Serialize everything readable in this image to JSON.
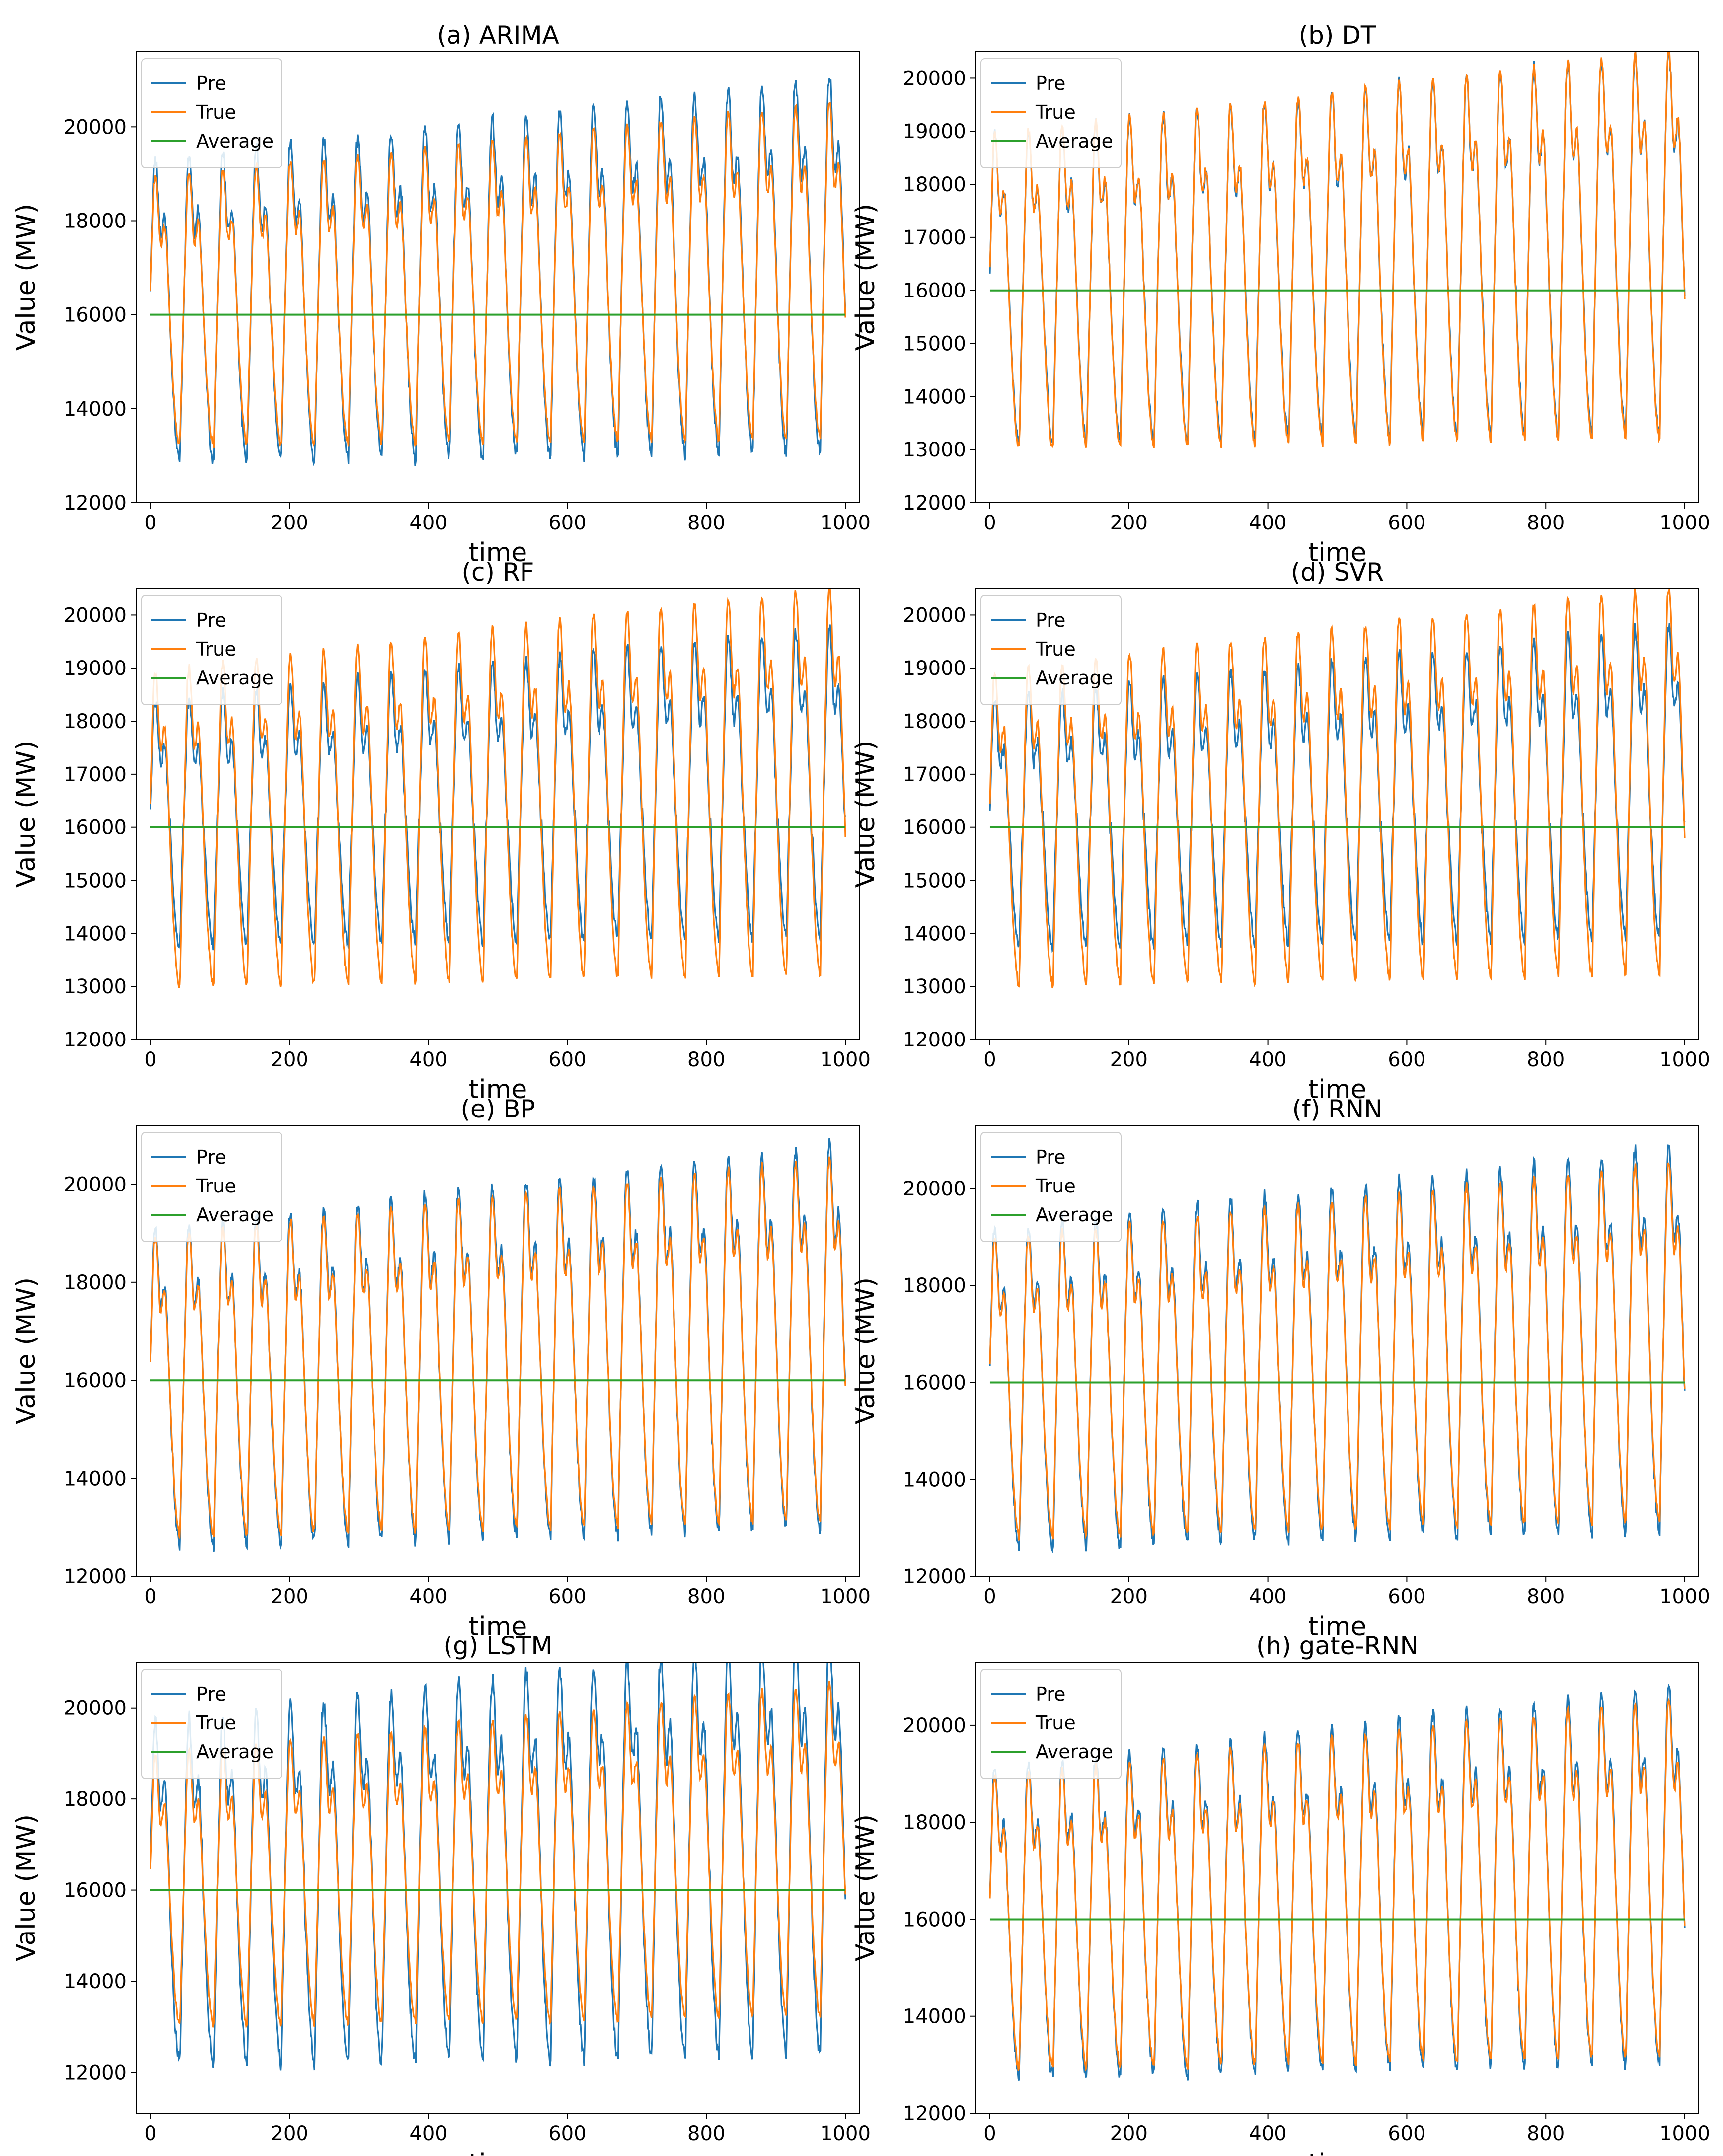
{
  "figure": {
    "legend_labels": [
      "Pre",
      "True",
      "Average"
    ],
    "colors": {
      "pre": "#1f77b4",
      "true": "#ff7f0e",
      "average": "#2ca02c",
      "axes": "#000000"
    }
  },
  "chart_data": [
    {
      "type": "line",
      "title": "(a)  ARIMA",
      "xlabel": "time",
      "ylabel": "Value (MW)",
      "xlim": [
        -20,
        1020
      ],
      "ylim": [
        12000,
        21600
      ],
      "xticks": [
        0,
        200,
        400,
        600,
        800,
        1000
      ],
      "xtick_labels": [
        "0",
        "200",
        "400",
        "600",
        "800",
        "1000"
      ],
      "yticks": [
        12000,
        14000,
        16000,
        18000,
        20000
      ],
      "ytick_labels": [
        "12000",
        "14000",
        "16000",
        "18000",
        "20000"
      ],
      "average": 16000,
      "legend": "top-left",
      "series": [
        {
          "name": "Pre",
          "color": "#1f77b4"
        },
        {
          "name": "True",
          "color": "#ff7f0e"
        },
        {
          "name": "Average",
          "color": "#2ca02c",
          "value": 16000
        }
      ],
      "signal": {
        "peak_start": 18700,
        "peak_end": 20300,
        "trough_start": 13200,
        "trough_end": 13500,
        "pre_amp": 1.12,
        "pre_offset": 0,
        "noise": 250
      }
    },
    {
      "type": "line",
      "title": "(b)  DT",
      "xlabel": "time",
      "ylabel": "Value (MW)",
      "xlim": [
        -20,
        1020
      ],
      "ylim": [
        12000,
        20500
      ],
      "xticks": [
        0,
        200,
        400,
        600,
        800,
        1000
      ],
      "xtick_labels": [
        "0",
        "200",
        "400",
        "600",
        "800",
        "1000"
      ],
      "yticks": [
        12000,
        13000,
        14000,
        15000,
        16000,
        17000,
        18000,
        19000,
        20000
      ],
      "ytick_labels": [
        "12000",
        "13000",
        "14000",
        "15000",
        "16000",
        "17000",
        "18000",
        "19000",
        "20000"
      ],
      "average": 16000,
      "legend": "top-left",
      "series": [
        {
          "name": "Pre",
          "color": "#1f77b4"
        },
        {
          "name": "True",
          "color": "#ff7f0e"
        },
        {
          "name": "Average",
          "color": "#2ca02c",
          "value": 16000
        }
      ],
      "signal": {
        "peak_start": 18700,
        "peak_end": 20300,
        "trough_start": 13000,
        "trough_end": 13400,
        "pre_amp": 1.0,
        "pre_offset": 100,
        "noise": 180
      }
    },
    {
      "type": "line",
      "title": "(c)  RF",
      "xlabel": "time",
      "ylabel": "Value (MW)",
      "xlim": [
        -20,
        1020
      ],
      "ylim": [
        12000,
        20500
      ],
      "xticks": [
        0,
        200,
        400,
        600,
        800,
        1000
      ],
      "xtick_labels": [
        "0",
        "200",
        "400",
        "600",
        "800",
        "1000"
      ],
      "yticks": [
        12000,
        13000,
        14000,
        15000,
        16000,
        17000,
        18000,
        19000,
        20000
      ],
      "ytick_labels": [
        "12000",
        "13000",
        "14000",
        "15000",
        "16000",
        "17000",
        "18000",
        "19000",
        "20000"
      ],
      "average": 16000,
      "legend": "top-left",
      "series": [
        {
          "name": "Pre",
          "color": "#1f77b4"
        },
        {
          "name": "True",
          "color": "#ff7f0e"
        },
        {
          "name": "Average",
          "color": "#2ca02c",
          "value": 16000
        }
      ],
      "signal": {
        "peak_start": 18700,
        "peak_end": 20300,
        "trough_start": 13000,
        "trough_end": 13400,
        "pre_amp": 0.85,
        "pre_offset": 300,
        "noise": 180
      }
    },
    {
      "type": "line",
      "title": "(d)  SVR",
      "xlabel": "time",
      "ylabel": "Value (MW)",
      "xlim": [
        -20,
        1020
      ],
      "ylim": [
        12000,
        20500
      ],
      "xticks": [
        0,
        200,
        400,
        600,
        800,
        1000
      ],
      "xtick_labels": [
        "0",
        "200",
        "400",
        "600",
        "800",
        "1000"
      ],
      "yticks": [
        12000,
        13000,
        14000,
        15000,
        16000,
        17000,
        18000,
        19000,
        20000
      ],
      "ytick_labels": [
        "12000",
        "13000",
        "14000",
        "15000",
        "16000",
        "17000",
        "18000",
        "19000",
        "20000"
      ],
      "average": 16000,
      "legend": "top-left",
      "series": [
        {
          "name": "Pre",
          "color": "#1f77b4"
        },
        {
          "name": "True",
          "color": "#ff7f0e"
        },
        {
          "name": "Average",
          "color": "#2ca02c",
          "value": 16000
        }
      ],
      "signal": {
        "peak_start": 18700,
        "peak_end": 20300,
        "trough_start": 13000,
        "trough_end": 13400,
        "pre_amp": 0.86,
        "pre_offset": 300,
        "noise": 180
      }
    },
    {
      "type": "line",
      "title": "(e)  BP",
      "xlabel": "time",
      "ylabel": "Value (MW)",
      "xlim": [
        -20,
        1020
      ],
      "ylim": [
        12000,
        21200
      ],
      "xticks": [
        0,
        200,
        400,
        600,
        800,
        1000
      ],
      "xtick_labels": [
        "0",
        "200",
        "400",
        "600",
        "800",
        "1000"
      ],
      "yticks": [
        12000,
        14000,
        16000,
        18000,
        20000
      ],
      "ytick_labels": [
        "12000",
        "14000",
        "16000",
        "18000",
        "20000"
      ],
      "average": 16000,
      "legend": "top-left",
      "series": [
        {
          "name": "Pre",
          "color": "#1f77b4"
        },
        {
          "name": "True",
          "color": "#ff7f0e"
        },
        {
          "name": "Average",
          "color": "#2ca02c",
          "value": 16000
        }
      ],
      "signal": {
        "peak_start": 18700,
        "peak_end": 20300,
        "trough_start": 12800,
        "trough_end": 13400,
        "pre_amp": 1.06,
        "pre_offset": 0,
        "noise": 220
      }
    },
    {
      "type": "line",
      "title": "(f)  RNN",
      "xlabel": "time",
      "ylabel": "Value (MW)",
      "xlim": [
        -20,
        1020
      ],
      "ylim": [
        12000,
        21300
      ],
      "xticks": [
        0,
        200,
        400,
        600,
        800,
        1000
      ],
      "xtick_labels": [
        "0",
        "200",
        "400",
        "600",
        "800",
        "1000"
      ],
      "yticks": [
        12000,
        14000,
        16000,
        18000,
        20000
      ],
      "ytick_labels": [
        "12000",
        "14000",
        "16000",
        "18000",
        "20000"
      ],
      "average": 16000,
      "legend": "top-left",
      "series": [
        {
          "name": "Pre",
          "color": "#1f77b4"
        },
        {
          "name": "True",
          "color": "#ff7f0e"
        },
        {
          "name": "Average",
          "color": "#2ca02c",
          "value": 16000
        }
      ],
      "signal": {
        "peak_start": 18700,
        "peak_end": 20300,
        "trough_start": 12800,
        "trough_end": 13400,
        "pre_amp": 1.07,
        "pre_offset": 0,
        "noise": 220
      }
    },
    {
      "type": "line",
      "title": "(g)  LSTM",
      "xlabel": "time",
      "ylabel": "Value (MW)",
      "xlim": [
        -20,
        1020
      ],
      "ylim": [
        11100,
        21000
      ],
      "xticks": [
        0,
        200,
        400,
        600,
        800,
        1000
      ],
      "xtick_labels": [
        "0",
        "200",
        "400",
        "600",
        "800",
        "1000"
      ],
      "yticks": [
        12000,
        14000,
        16000,
        18000,
        20000
      ],
      "ytick_labels": [
        "12000",
        "14000",
        "16000",
        "18000",
        "20000"
      ],
      "average": 16000,
      "legend": "top-left",
      "series": [
        {
          "name": "Pre",
          "color": "#1f77b4"
        },
        {
          "name": "True",
          "color": "#ff7f0e"
        },
        {
          "name": "Average",
          "color": "#2ca02c",
          "value": 16000
        }
      ],
      "signal": {
        "peak_start": 18700,
        "peak_end": 20300,
        "trough_start": 13000,
        "trough_end": 13400,
        "pre_amp": 1.22,
        "pre_offset": -200,
        "noise": 300
      }
    },
    {
      "type": "line",
      "title": "(h)  gate-RNN",
      "xlabel": "time",
      "ylabel": "Value (MW)",
      "xlim": [
        -20,
        1020
      ],
      "ylim": [
        12000,
        21300
      ],
      "xticks": [
        0,
        200,
        400,
        600,
        800,
        1000
      ],
      "xtick_labels": [
        "0",
        "200",
        "400",
        "600",
        "800",
        "1000"
      ],
      "yticks": [
        12000,
        14000,
        16000,
        18000,
        20000
      ],
      "ytick_labels": [
        "12000",
        "14000",
        "16000",
        "18000",
        "20000"
      ],
      "average": 16000,
      "legend": "top-left",
      "series": [
        {
          "name": "Pre",
          "color": "#1f77b4"
        },
        {
          "name": "True",
          "color": "#ff7f0e"
        },
        {
          "name": "Average",
          "color": "#2ca02c",
          "value": 16000
        }
      ],
      "signal": {
        "peak_start": 18700,
        "peak_end": 20300,
        "trough_start": 12900,
        "trough_end": 13400,
        "pre_amp": 1.06,
        "pre_offset": 0,
        "noise": 220
      }
    }
  ]
}
